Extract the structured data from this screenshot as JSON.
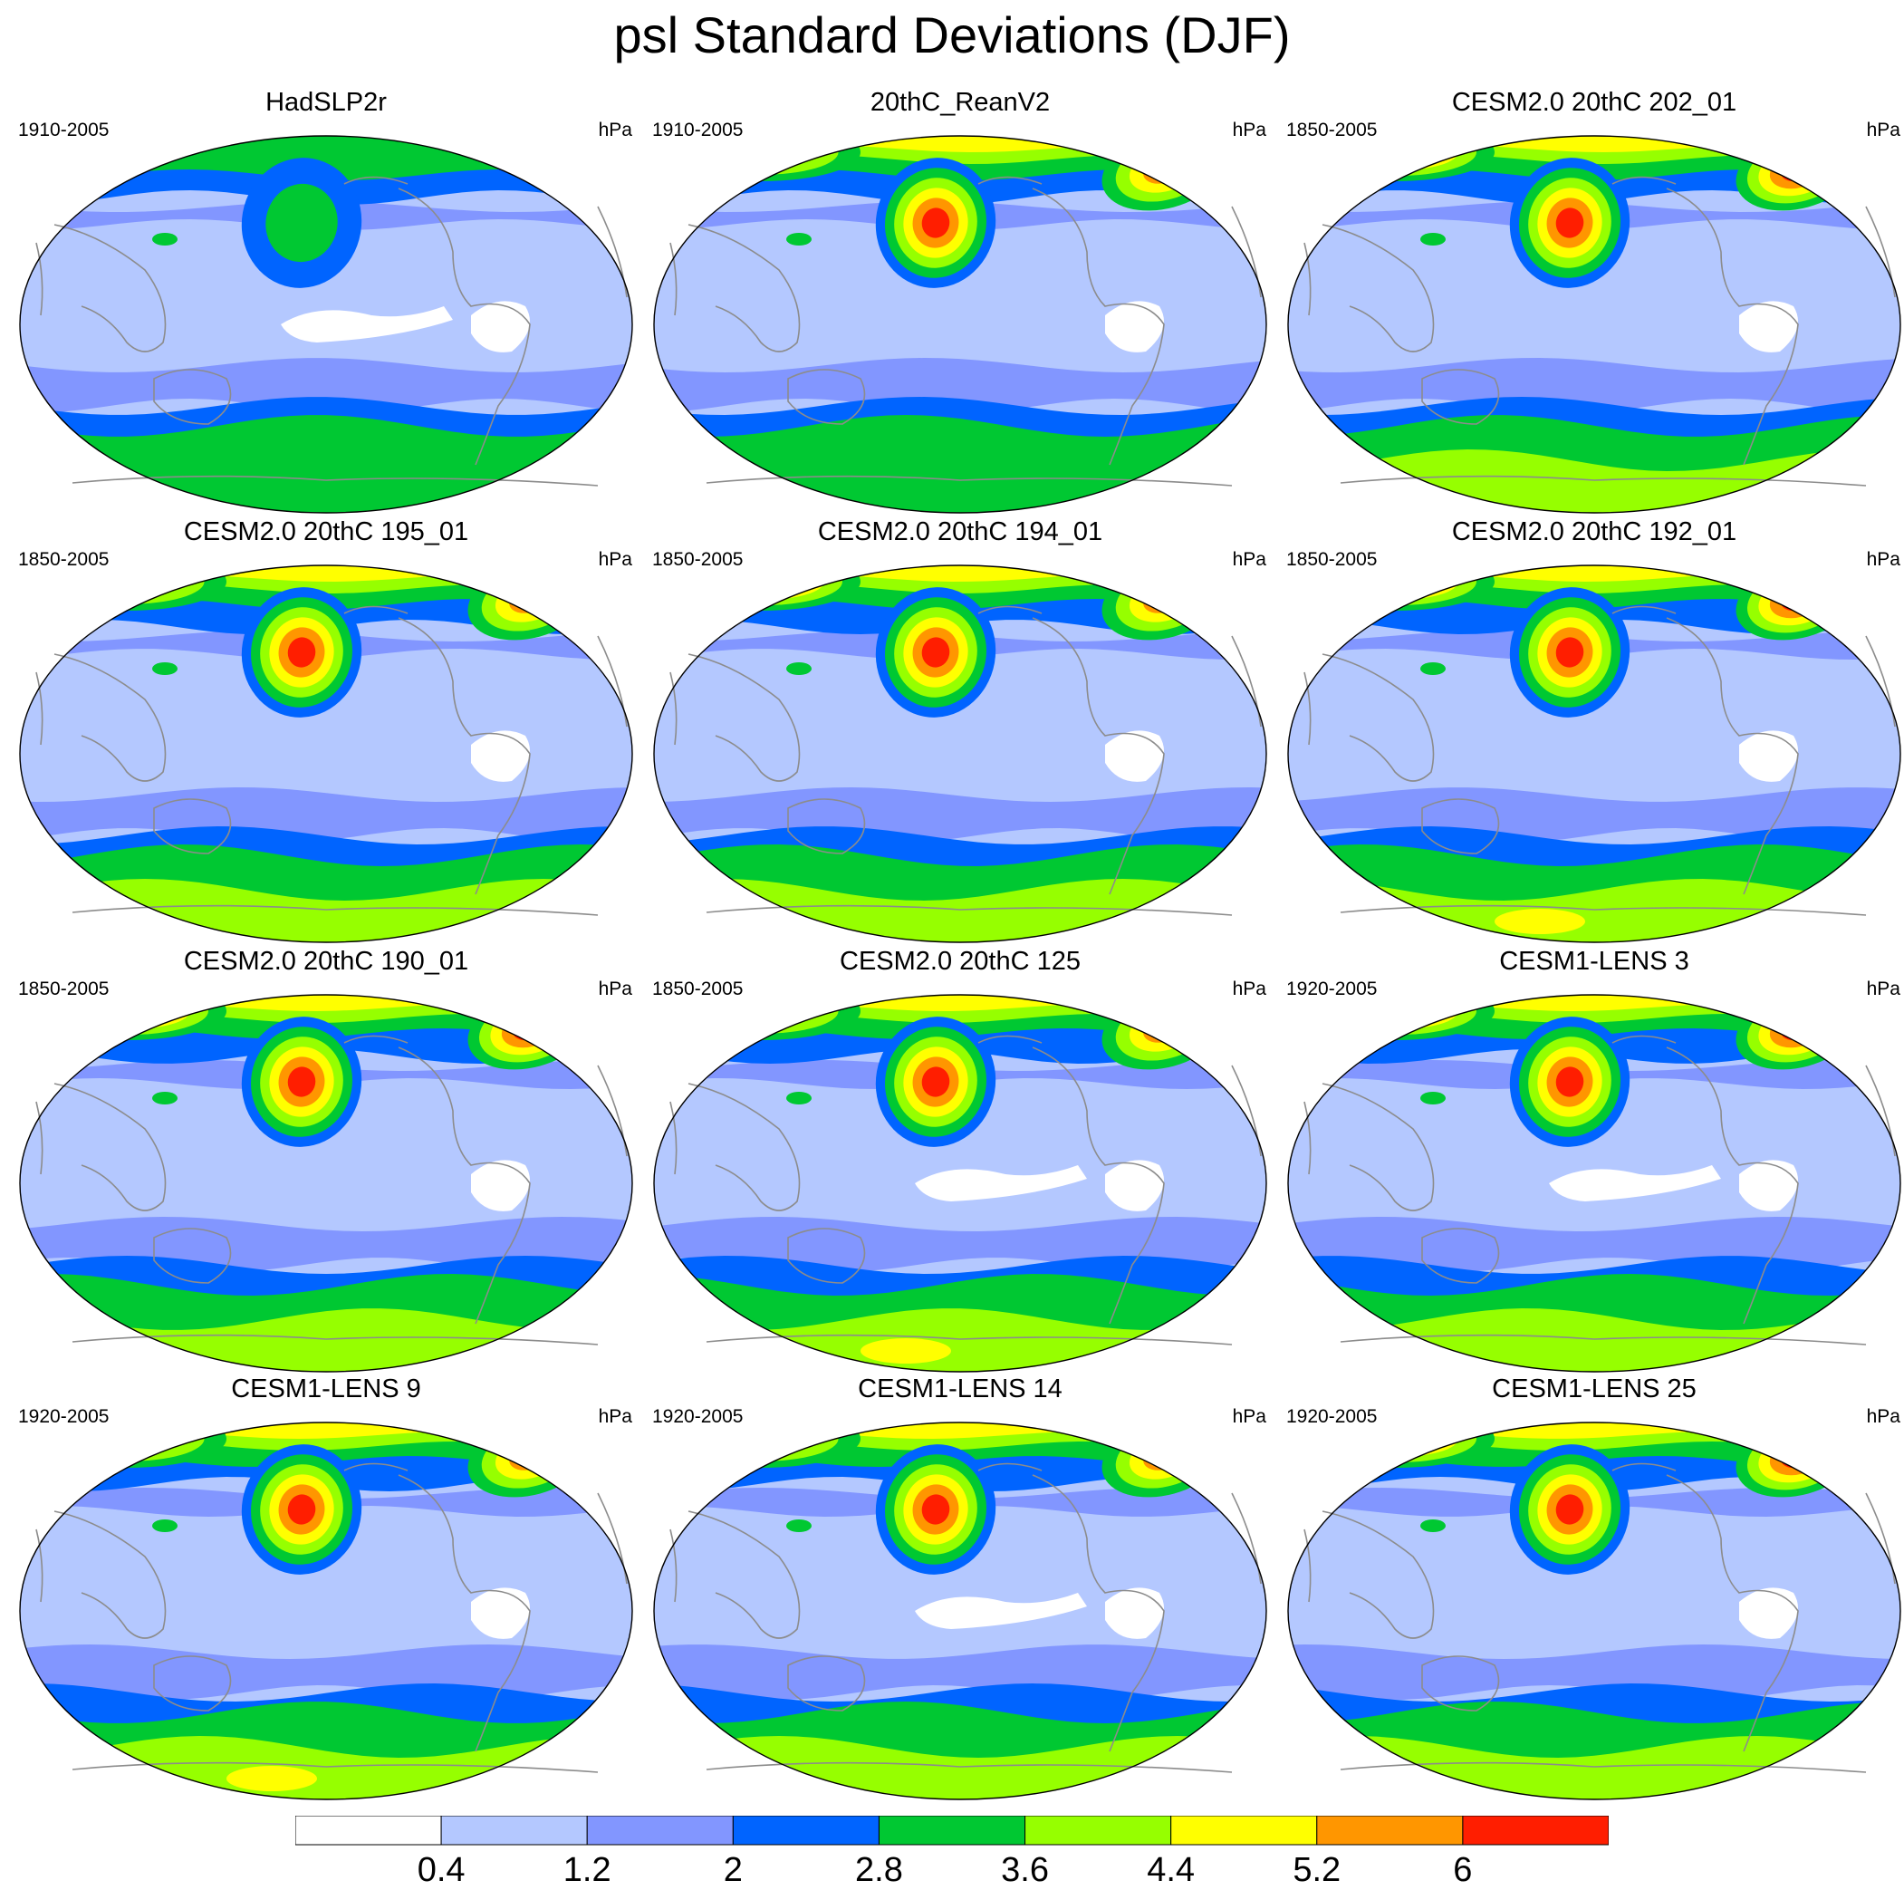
{
  "title": "psl Standard Deviations (DJF)",
  "units_label": "hPa",
  "colors": {
    "levels_bands": [
      "#ffffff",
      "#b4c8ff",
      "#8296ff",
      "#0064ff",
      "#00c832",
      "#96ff00",
      "#ffff00",
      "#ff9600",
      "#ff1e00"
    ],
    "coast": "#8c8c8c",
    "outline": "#000000"
  },
  "colorbar": {
    "tick_labels": [
      "0.4",
      "1.2",
      "2",
      "2.8",
      "3.6",
      "4.4",
      "5.2",
      "6"
    ]
  },
  "panels": [
    {
      "title": "HadSLP2r",
      "years": "1910-2005",
      "units": "hPa",
      "nh_max": 3,
      "np_max": 3,
      "sh_max": 4,
      "pac_max": 4,
      "atl_max": 3,
      "has_white_tropics": true
    },
    {
      "title": "20thC_ReanV2",
      "years": "1910-2005",
      "units": "hPa",
      "nh_max": 7,
      "np_max": 7,
      "sh_max": 4,
      "pac_max": 8,
      "atl_max": 7,
      "has_white_tropics": false
    },
    {
      "title": "CESM2.0 20thC 202_01",
      "years": "1850-2005",
      "units": "hPa",
      "nh_max": 8,
      "np_max": 8,
      "sh_max": 5,
      "pac_max": 8,
      "atl_max": 8,
      "has_white_tropics": false
    },
    {
      "title": "CESM2.0 20thC 195_01",
      "years": "1850-2005",
      "units": "hPa",
      "nh_max": 8,
      "np_max": 7,
      "sh_max": 5,
      "pac_max": 8,
      "atl_max": 7,
      "has_white_tropics": false
    },
    {
      "title": "CESM2.0 20thC 194_01",
      "years": "1850-2005",
      "units": "hPa",
      "nh_max": 7,
      "np_max": 8,
      "sh_max": 5,
      "pac_max": 8,
      "atl_max": 7,
      "has_white_tropics": false
    },
    {
      "title": "CESM2.0 20thC 192_01",
      "years": "1850-2005",
      "units": "hPa",
      "nh_max": 8,
      "np_max": 8,
      "sh_max": 6,
      "pac_max": 8,
      "atl_max": 8,
      "has_white_tropics": false
    },
    {
      "title": "CESM2.0 20thC 190_01",
      "years": "1850-2005",
      "units": "hPa",
      "nh_max": 8,
      "np_max": 8,
      "sh_max": 5,
      "pac_max": 8,
      "atl_max": 8,
      "has_white_tropics": false
    },
    {
      "title": "CESM2.0 20thC 125",
      "years": "1850-2005",
      "units": "hPa",
      "nh_max": 8,
      "np_max": 7,
      "sh_max": 6,
      "pac_max": 8,
      "atl_max": 7,
      "has_white_tropics": true
    },
    {
      "title": "CESM1-LENS 3",
      "years": "1920-2005",
      "units": "hPa",
      "nh_max": 8,
      "np_max": 8,
      "sh_max": 5,
      "pac_max": 8,
      "atl_max": 8,
      "has_white_tropics": true
    },
    {
      "title": "CESM1-LENS 9",
      "years": "1920-2005",
      "units": "hPa",
      "nh_max": 8,
      "np_max": 7,
      "sh_max": 6,
      "pac_max": 8,
      "atl_max": 7,
      "has_white_tropics": false
    },
    {
      "title": "CESM1-LENS 14",
      "years": "1920-2005",
      "units": "hPa",
      "nh_max": 8,
      "np_max": 7,
      "sh_max": 5,
      "pac_max": 8,
      "atl_max": 7,
      "has_white_tropics": true
    },
    {
      "title": "CESM1-LENS 25",
      "years": "1920-2005",
      "units": "hPa",
      "nh_max": 8,
      "np_max": 8,
      "sh_max": 5,
      "pac_max": 8,
      "atl_max": 8,
      "has_white_tropics": false
    }
  ]
}
